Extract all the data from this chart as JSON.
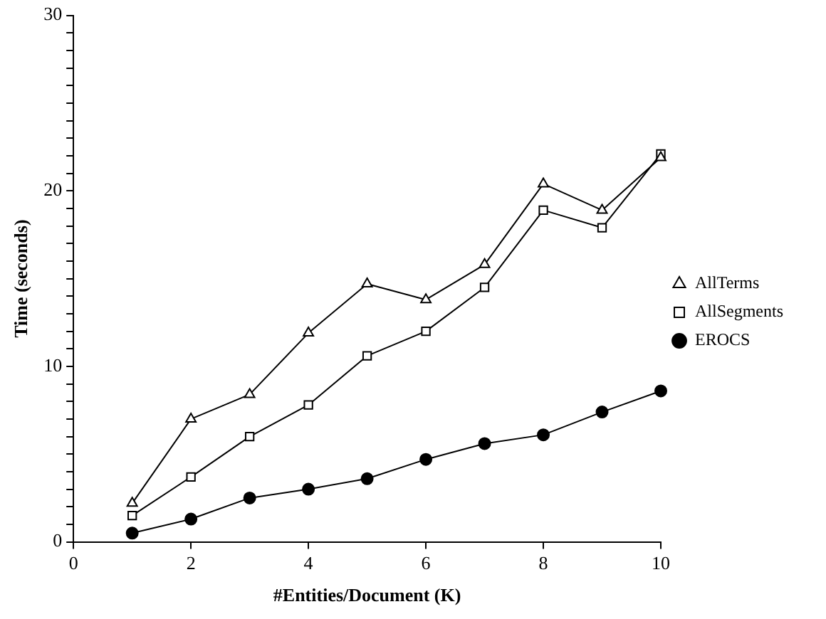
{
  "chart_data": {
    "type": "line",
    "xlabel": "#Entities/Document (K)",
    "ylabel": "Time (seconds)",
    "xlim": [
      0,
      10
    ],
    "xticks": [
      0,
      2,
      4,
      6,
      8,
      10
    ],
    "ylim": [
      0,
      30
    ],
    "yticks": [
      0,
      {
        "value": 1,
        "label": null
      },
      {
        "value": 2,
        "label": null
      },
      {
        "value": 3,
        "label": null
      },
      {
        "value": 4,
        "label": null
      },
      {
        "value": 5,
        "label": null
      },
      {
        "value": 6,
        "label": null
      },
      {
        "value": 7,
        "label": null
      },
      {
        "value": 8,
        "label": null
      },
      {
        "value": 9,
        "label": null
      },
      10,
      {
        "value": 11,
        "label": null
      },
      {
        "value": 12,
        "label": null
      },
      {
        "value": 13,
        "label": null
      },
      {
        "value": 14,
        "label": null
      },
      {
        "value": 15,
        "label": null
      },
      {
        "value": 16,
        "label": null
      },
      {
        "value": 17,
        "label": null
      },
      {
        "value": 18,
        "label": null
      },
      {
        "value": 19,
        "label": null
      },
      20,
      {
        "value": 21,
        "label": null
      },
      {
        "value": 22,
        "label": null
      },
      {
        "value": 23,
        "label": null
      },
      {
        "value": 24,
        "label": null
      },
      {
        "value": 25,
        "label": null
      },
      {
        "value": 26,
        "label": null
      },
      {
        "value": 27,
        "label": null
      },
      {
        "value": 28,
        "label": null
      },
      {
        "value": 29,
        "label": null
      },
      30
    ],
    "x": [
      1,
      2,
      3,
      4,
      5,
      6,
      7,
      8,
      9,
      10
    ],
    "grid": false,
    "legend": "right",
    "line_style": "solid",
    "series": [
      {
        "name": "AllTerms",
        "color": "#000000",
        "marker": "triangle",
        "values": [
          2.2,
          7.0,
          8.4,
          11.9,
          14.7,
          13.8,
          15.8,
          20.4,
          18.9,
          21.9
        ]
      },
      {
        "name": "AllSegments",
        "color": "#000000",
        "marker": "square",
        "values": [
          1.5,
          3.7,
          6.0,
          7.8,
          10.6,
          12.0,
          14.5,
          18.9,
          17.9,
          22.1
        ]
      },
      {
        "name": "EROCS",
        "color": "#000000",
        "marker": "circle",
        "values": [
          0.5,
          1.3,
          2.5,
          3.0,
          3.6,
          4.7,
          5.6,
          6.1,
          7.4,
          8.6
        ]
      }
    ]
  }
}
